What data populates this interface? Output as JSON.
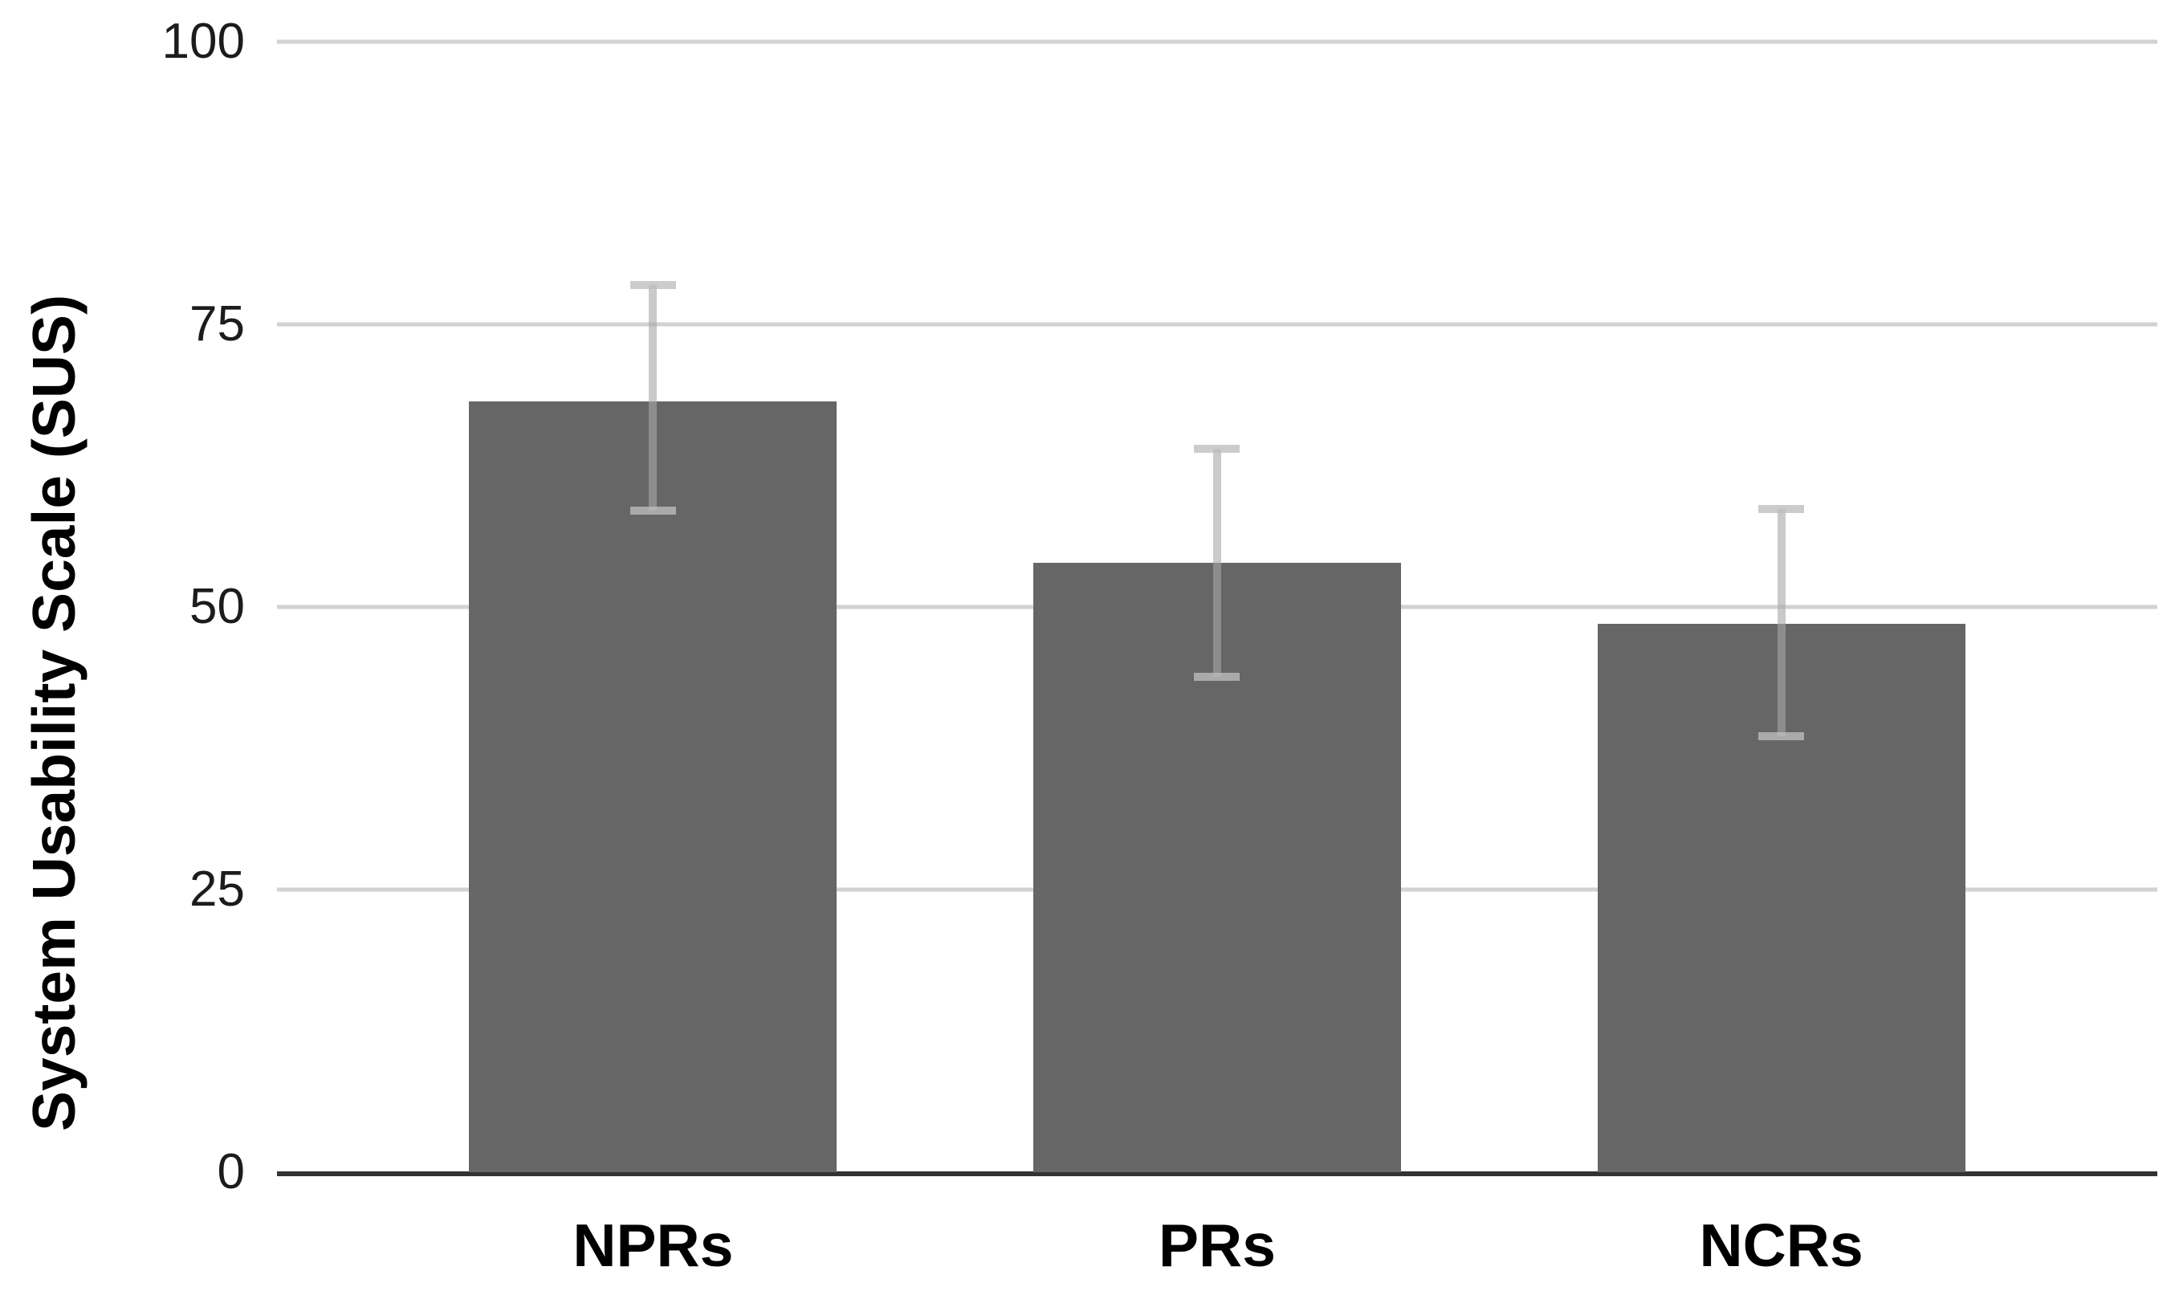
{
  "chart_data": {
    "type": "bar",
    "title": "",
    "categories": [
      "NPRs",
      "PRs",
      "NCRs"
    ],
    "values": [
      68.2,
      53.9,
      48.5
    ],
    "error_low": [
      58.5,
      43.8,
      38.6
    ],
    "error_high": [
      78.5,
      64.0,
      58.7
    ],
    "xlabel": "",
    "ylabel": "System Usability Scale (SUS)",
    "ylim": [
      0,
      100
    ],
    "yticks": [
      0,
      25,
      50,
      75,
      100
    ],
    "grid": true,
    "legend": "none",
    "colors": {
      "bar_fill": "#666666",
      "gridline": "#d2d2d2",
      "axis_line": "#333333",
      "error_bar": "rgba(167,167,167,0.6)",
      "error_cap": "rgba(190,190,190,0.78)",
      "tick_text": "#1c1c1c",
      "label_text": "#000000"
    }
  }
}
